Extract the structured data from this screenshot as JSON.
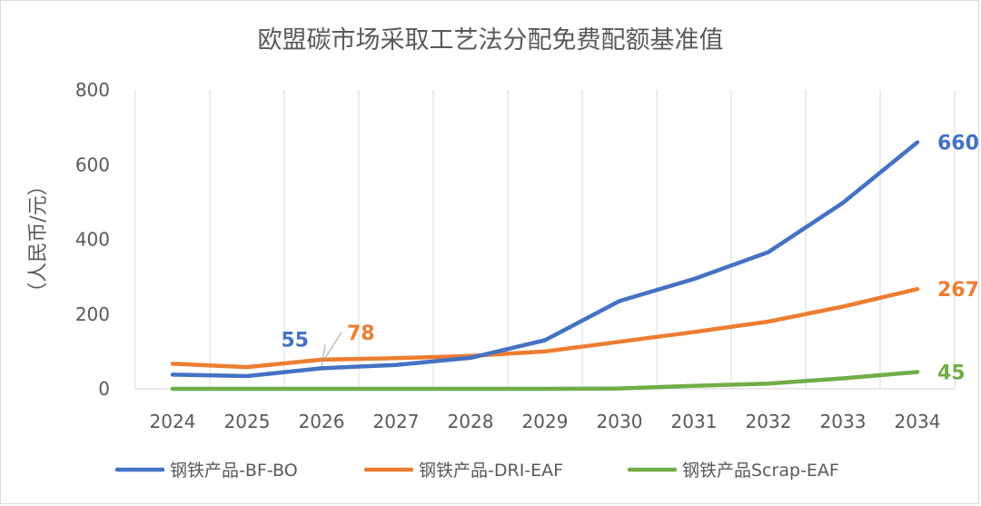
{
  "chart_data": {
    "type": "line",
    "title": "欧盟碳市场采取工艺法分配免费配额基准值",
    "xlabel": "",
    "ylabel": "（人民币/元）",
    "ylim": [
      0,
      800
    ],
    "yticks": [
      0,
      200,
      400,
      600,
      800
    ],
    "grid": "vertical",
    "legend_position": "bottom",
    "x": [
      "2024",
      "2025",
      "2026",
      "2027",
      "2028",
      "2029",
      "2030",
      "2031",
      "2032",
      "2033",
      "2034"
    ],
    "series": [
      {
        "name": "钢铁产品-BF-BO",
        "color": "#4472C4",
        "values": [
          38,
          34,
          55,
          64,
          83,
          130,
          235,
          294,
          366,
          498,
          660
        ]
      },
      {
        "name": "钢铁产品-DRI-EAF",
        "color": "#ED7D31",
        "values": [
          67,
          58,
          78,
          82,
          88,
          100,
          126,
          152,
          180,
          220,
          267
        ]
      },
      {
        "name": "钢铁产品Scrap-EAF",
        "color": "#70AD47",
        "values": [
          0,
          0,
          0,
          0,
          0,
          0,
          1,
          8,
          14,
          28,
          45
        ]
      }
    ],
    "annotations": [
      {
        "series": 0,
        "index": 2,
        "text": "55",
        "color": "#4472C4"
      },
      {
        "series": 1,
        "index": 2,
        "text": "78",
        "color": "#ED7D31"
      },
      {
        "series": 0,
        "index": 10,
        "text": "660",
        "color": "#4472C4"
      },
      {
        "series": 1,
        "index": 10,
        "text": "267",
        "color": "#ED7D31"
      },
      {
        "series": 2,
        "index": 10,
        "text": "45",
        "color": "#70AD47"
      }
    ],
    "colors": {
      "grid": "#d9d9d9",
      "text": "#595959"
    }
  }
}
